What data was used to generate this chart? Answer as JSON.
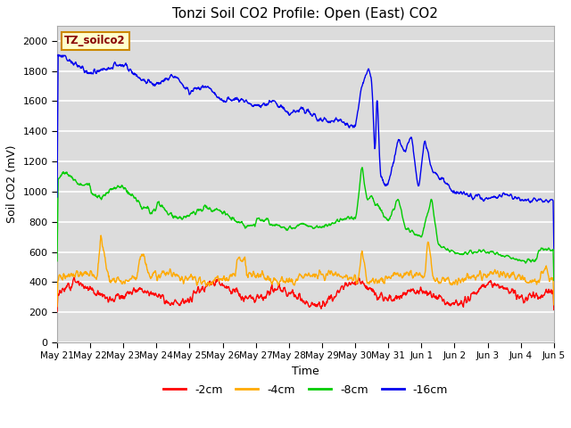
{
  "title": "Tonzi Soil CO2 Profile: Open (East) CO2",
  "ylabel": "Soil CO2 (mV)",
  "xlabel": "Time",
  "ylim": [
    0,
    2100
  ],
  "yticks": [
    0,
    200,
    400,
    600,
    800,
    1000,
    1200,
    1400,
    1600,
    1800,
    2000
  ],
  "bg_color": "#dcdcdc",
  "grid_color": "white",
  "legend_label": "TZ_soilco2",
  "legend_box_color": "#ffffcc",
  "legend_box_edge": "#cc8800",
  "legend_text_color": "#880000",
  "series_colors": [
    "#ff0000",
    "#ffaa00",
    "#00cc00",
    "#0000ee"
  ],
  "series_labels": [
    "-2cm",
    "-4cm",
    "-8cm",
    "-16cm"
  ],
  "x_tick_labels": [
    "May 21",
    "May 22",
    "May 23",
    "May 24",
    "May 25",
    "May 26",
    "May 27",
    "May 28",
    "May 29",
    "May 30",
    "May 31",
    "Jun 1",
    "Jun 2",
    "Jun 3",
    "Jun 4",
    "Jun 5"
  ],
  "figsize": [
    6.4,
    4.8
  ],
  "dpi": 100
}
